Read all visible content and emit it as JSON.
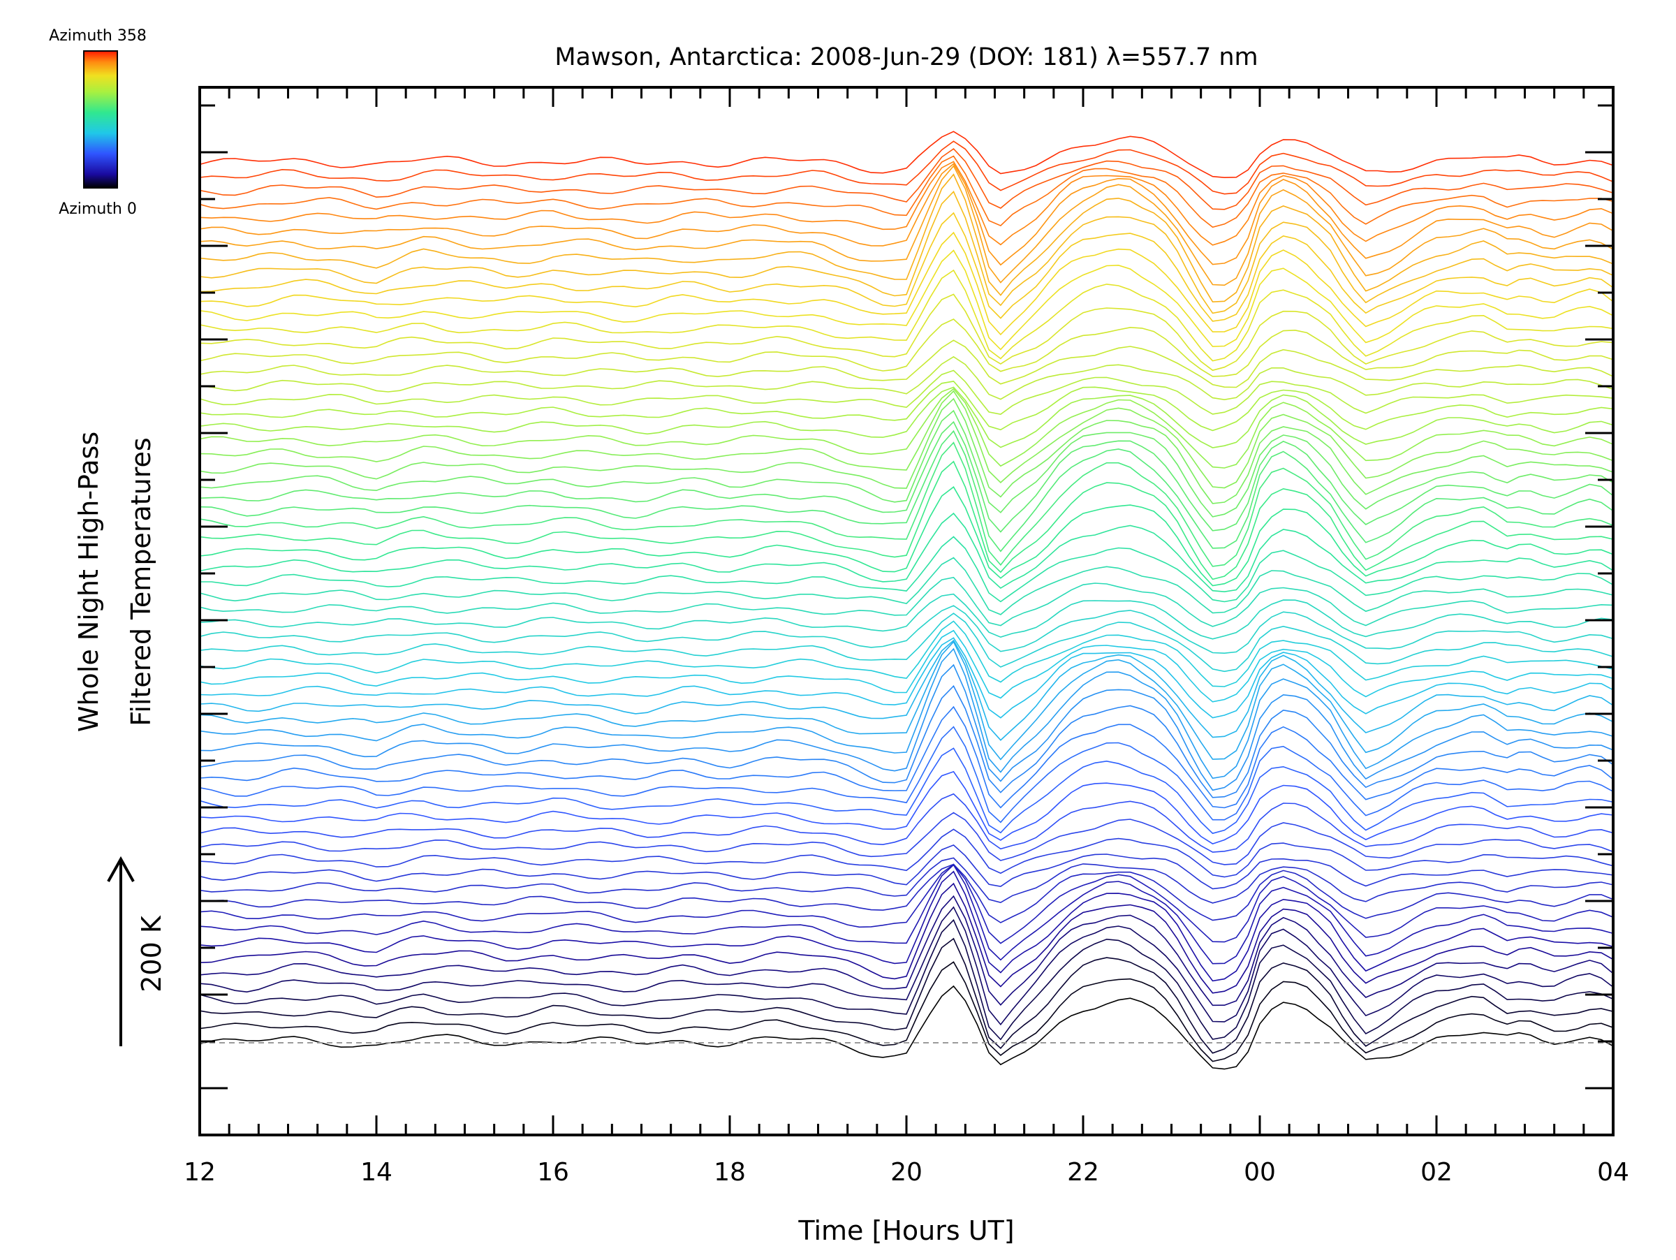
{
  "chart_data": {
    "type": "line",
    "title": "Mawson, Antarctica: 2008-Jun-29 (DOY: 181) λ=557.7 nm",
    "xlabel": "Time [Hours UT]",
    "ylabel": [
      "Whole Night High-Pass",
      "Filtered Temperatures"
    ],
    "x_tick_labels": [
      "12",
      "14",
      "16",
      "18",
      "20",
      "22",
      "00",
      "02",
      "04"
    ],
    "x_tick_hours": [
      12,
      14,
      16,
      18,
      20,
      22,
      24,
      26,
      28
    ],
    "xlim": [
      12,
      28
    ],
    "scale_bar": {
      "label": "200 K",
      "kelvin": 200
    },
    "colorbar": {
      "top_label": "Azimuth 358",
      "bottom_label": "Azimuth 0",
      "min": 0,
      "max": 358,
      "colormap": "rainbow"
    },
    "baseline_dashed": true,
    "stack": {
      "traces": 64,
      "offset_kelvin": 20,
      "azimuth_step_deg": 5.6
    },
    "template_profile": {
      "note": "Representative filtered temperature profile (K) of the azimuth-stacked traces; each trace = this profile + per-azimuth wiggle + stack offset",
      "t": [
        12.0,
        12.5,
        13.0,
        13.5,
        14.0,
        14.5,
        15.0,
        15.5,
        16.0,
        16.5,
        17.0,
        17.5,
        18.0,
        18.5,
        19.0,
        19.5,
        19.8,
        20.0,
        20.3,
        20.5,
        20.7,
        21.0,
        21.2,
        21.5,
        21.8,
        22.0,
        22.3,
        22.5,
        22.8,
        23.0,
        23.3,
        23.5,
        23.8,
        24.0,
        24.2,
        24.5,
        24.8,
        25.0,
        25.2,
        25.5,
        25.8,
        26.0,
        26.3,
        26.5,
        26.8,
        27.0,
        27.3,
        27.5,
        27.8,
        28.0
      ],
      "k": [
        2,
        0,
        6,
        3,
        -5,
        8,
        4,
        0,
        6,
        2,
        -2,
        4,
        1,
        6,
        3,
        -12,
        -20,
        -18,
        60,
        105,
        60,
        -50,
        -25,
        5,
        45,
        60,
        72,
        72,
        55,
        35,
        -20,
        -50,
        -30,
        40,
        70,
        58,
        25,
        -10,
        -35,
        -20,
        0,
        10,
        15,
        20,
        5,
        10,
        0,
        5,
        12,
        0
      ]
    },
    "colors": {
      "background": "#ffffff",
      "axes": "#000000",
      "baseline": "#9a9a9a"
    }
  }
}
